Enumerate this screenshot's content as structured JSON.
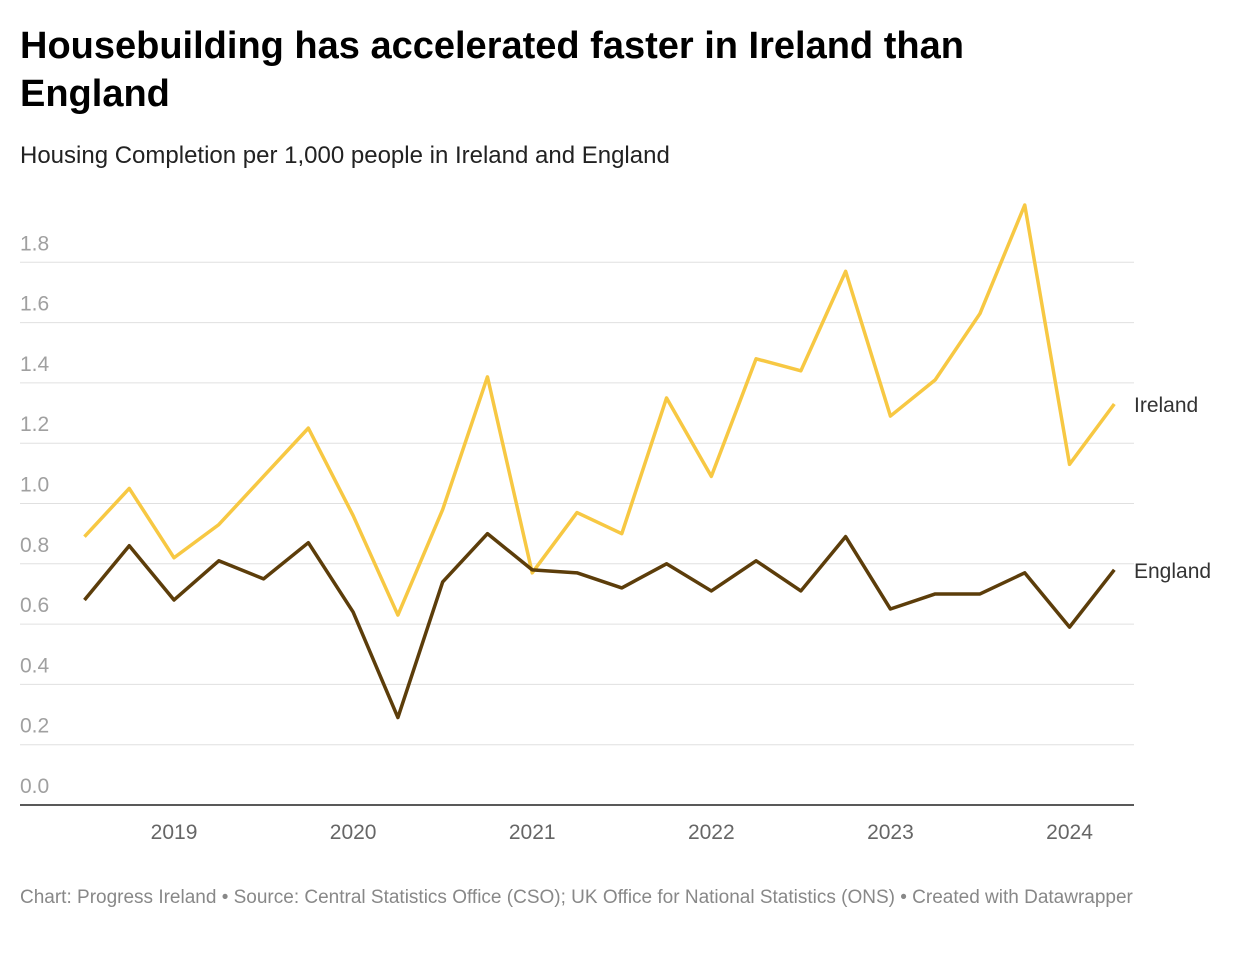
{
  "chart_data": {
    "type": "line",
    "title": "Housebuilding has accelerated faster in Ireland than England",
    "subtitle": "Housing Completion per 1,000 people in Ireland and England",
    "source": "Chart: Progress Ireland • Source: Central Statistics Office (CSO); UK Office for National Statistics (ONS) • Created with Datawrapper",
    "x": [
      2018.5,
      2018.75,
      2019,
      2019.25,
      2019.5,
      2019.75,
      2020,
      2020.25,
      2020.5,
      2020.75,
      2021,
      2021.25,
      2021.5,
      2021.75,
      2022,
      2022.25,
      2022.5,
      2022.75,
      2023,
      2023.25,
      2023.5,
      2023.75,
      2024,
      2024.25
    ],
    "series": [
      {
        "name": "Ireland",
        "color": "#f7c843",
        "values": [
          0.89,
          1.05,
          0.82,
          0.93,
          1.09,
          1.25,
          0.96,
          0.63,
          0.98,
          1.42,
          0.77,
          0.97,
          0.9,
          1.35,
          1.09,
          1.48,
          1.44,
          1.77,
          1.29,
          1.41,
          1.63,
          1.99,
          1.13,
          1.33
        ]
      },
      {
        "name": "England",
        "color": "#5c3d0a",
        "values": [
          0.68,
          0.86,
          0.68,
          0.81,
          0.75,
          0.87,
          0.64,
          0.29,
          0.74,
          0.9,
          0.78,
          0.77,
          0.72,
          0.8,
          0.71,
          0.81,
          0.71,
          0.89,
          0.65,
          0.7,
          0.7,
          0.77,
          0.59,
          0.78
        ]
      }
    ],
    "xlim": [
      2018.14,
      2024.36
    ],
    "xticks": [
      2019,
      2020,
      2021,
      2022,
      2023,
      2024
    ],
    "ylim": [
      0,
      2.0
    ],
    "yticks": [
      {
        "value": 0,
        "label": "0.0"
      },
      0.2,
      0.4,
      0.6,
      0.8,
      {
        "value": 1,
        "label": "1.0"
      },
      1.2,
      1.4,
      1.6,
      1.8
    ],
    "grid": true
  }
}
